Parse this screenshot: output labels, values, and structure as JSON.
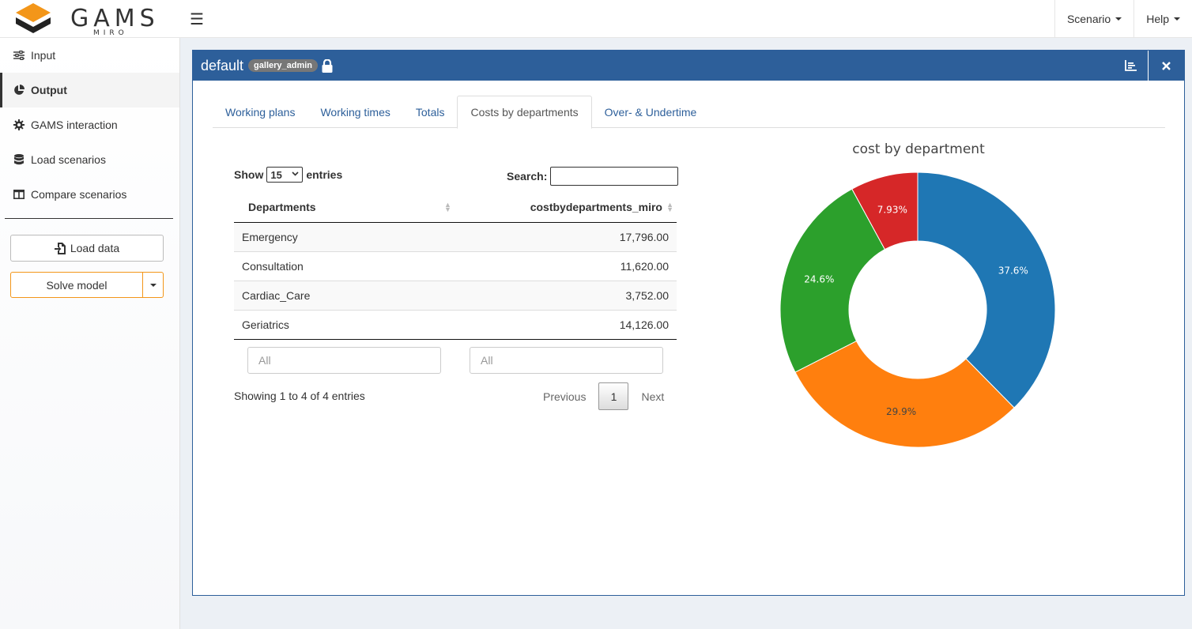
{
  "header": {
    "logo_text": "GAMS",
    "logo_sub": "MIRO",
    "menu_icon": "hamburger-icon",
    "nav": [
      {
        "label": "Scenario"
      },
      {
        "label": "Help"
      }
    ]
  },
  "sidebar": {
    "items": [
      {
        "label": "Input",
        "icon": "sliders-icon"
      },
      {
        "label": "Output",
        "icon": "pie-chart-icon",
        "active": true
      },
      {
        "label": "GAMS interaction",
        "icon": "gear-icon"
      },
      {
        "label": "Load scenarios",
        "icon": "database-icon"
      },
      {
        "label": "Compare scenarios",
        "icon": "columns-icon"
      }
    ],
    "load_data_label": "Load data",
    "solve_label": "Solve model"
  },
  "box": {
    "title": "default",
    "badge": "gallery_admin",
    "tabs": [
      {
        "label": "Working plans"
      },
      {
        "label": "Working times"
      },
      {
        "label": "Totals"
      },
      {
        "label": "Costs by departments",
        "active": true
      },
      {
        "label": "Over- & Undertime"
      }
    ]
  },
  "table": {
    "show_label": "Show",
    "page_size": "15",
    "entries_label": "entries",
    "search_label": "Search:",
    "columns": [
      "Departments",
      "costbydepartments_miro"
    ],
    "rows": [
      [
        "Emergency",
        "17,796.00"
      ],
      [
        "Consultation",
        "11,620.00"
      ],
      [
        "Cardiac_Care",
        "3,752.00"
      ],
      [
        "Geriatrics",
        "14,126.00"
      ]
    ],
    "filter_placeholder_1": "All",
    "filter_placeholder_2": "All",
    "info": "Showing 1 to 4 of 4 entries",
    "prev_label": "Previous",
    "current_page": "1",
    "next_label": "Next"
  },
  "chart_data": {
    "type": "pie",
    "title": "cost by department",
    "hole": 0.5,
    "legend_position": "top-right",
    "categories": [
      "Emergency",
      "Geriatrics",
      "Consultation",
      "Cardiac_Care"
    ],
    "values": [
      17796,
      14126,
      11620,
      3752
    ],
    "labels": [
      "37.6%",
      "29.9%",
      "24.6%",
      "7.93%"
    ],
    "colors": [
      "#1f77b4",
      "#ff7f0e",
      "#2ca02c",
      "#d62728"
    ]
  }
}
